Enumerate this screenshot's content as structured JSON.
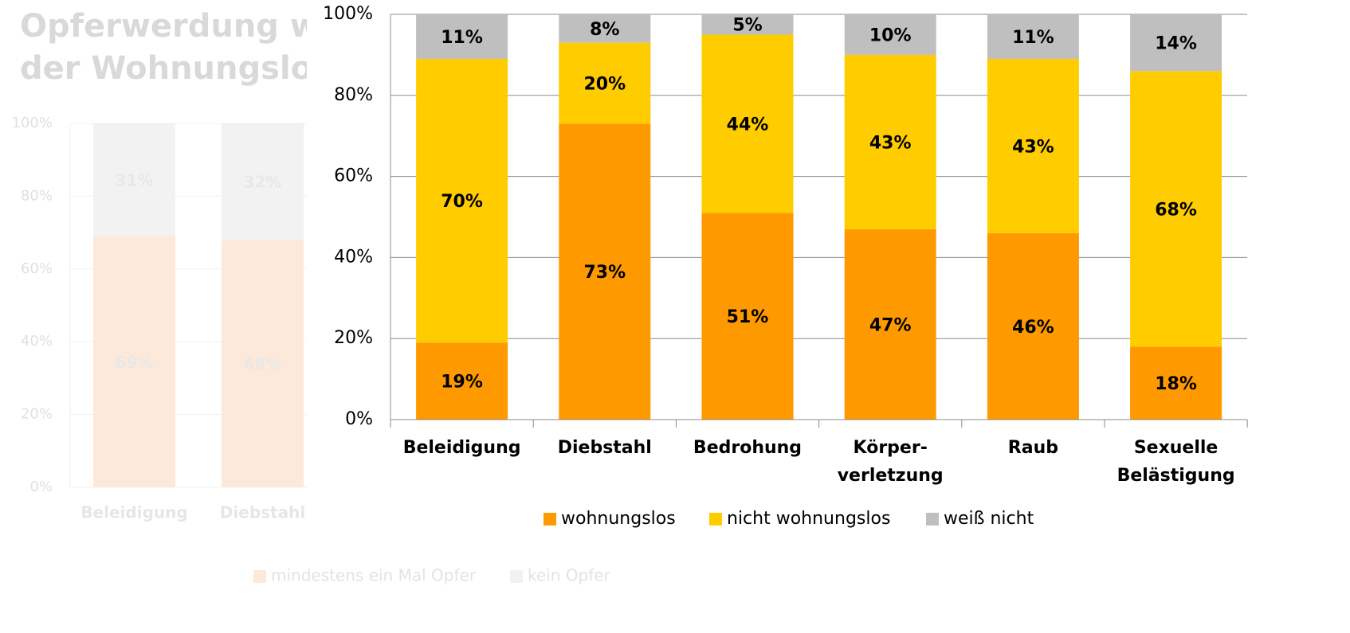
{
  "chart_data": [
    {
      "type": "stacked_bar",
      "title": [
        "Opferwerdung wä",
        "der Wohnungslos"
      ],
      "categories": [
        "Beleidigung",
        "Diebstahl"
      ],
      "series": [
        {
          "name": "mindestens ein Mal Opfer",
          "color": "#fde9d9",
          "values": [
            69,
            68
          ],
          "value_labels": [
            "69%",
            "68%"
          ]
        },
        {
          "name": "kein Opfer",
          "color": "#f2f2f2",
          "values": [
            31,
            32
          ],
          "value_labels": [
            "31%",
            "32%"
          ]
        }
      ],
      "ylim": [
        0,
        100
      ],
      "yticks": [
        {
          "value": 0,
          "label": "0%"
        },
        {
          "value": 20,
          "label": "20%"
        },
        {
          "value": 40,
          "label": "40%"
        },
        {
          "value": 60,
          "label": "60%"
        },
        {
          "value": 80,
          "label": "80%"
        },
        {
          "value": 100,
          "label": "100%"
        }
      ],
      "grid": true,
      "legend": "bottom"
    },
    {
      "type": "stacked_bar",
      "categories": [
        "Beleidigung",
        "Diebstahl",
        "Bedrohung",
        [
          "Körper-",
          "verletzung"
        ],
        "Raub",
        [
          "Sexuelle",
          "Belästigung"
        ]
      ],
      "series": [
        {
          "name": "wohnungslos",
          "color": "#ff9900",
          "values": [
            19,
            73,
            51,
            47,
            46,
            18
          ],
          "value_labels": [
            "19%",
            "73%",
            "51%",
            "47%",
            "46%",
            "18%"
          ]
        },
        {
          "name": "nicht wohnungslos",
          "color": "#ffcc00",
          "values": [
            70,
            20,
            44,
            43,
            43,
            68
          ],
          "value_labels": [
            "70%",
            "20%",
            "44%",
            "43%",
            "43%",
            "68%"
          ]
        },
        {
          "name": "weiß nicht",
          "color": "#bfbfbf",
          "values": [
            11,
            8,
            5,
            10,
            11,
            14
          ],
          "value_labels": [
            "11%",
            "8%",
            "5%",
            "10%",
            "11%",
            "14%"
          ]
        }
      ],
      "ylim": [
        0,
        100
      ],
      "yticks": [
        {
          "value": 0,
          "label": "0%"
        },
        {
          "value": 20,
          "label": "20%"
        },
        {
          "value": 40,
          "label": "40%"
        },
        {
          "value": 60,
          "label": "60%"
        },
        {
          "value": 80,
          "label": "80%"
        },
        {
          "value": 100,
          "label": "100%"
        }
      ],
      "grid": true,
      "legend": "bottom"
    }
  ]
}
